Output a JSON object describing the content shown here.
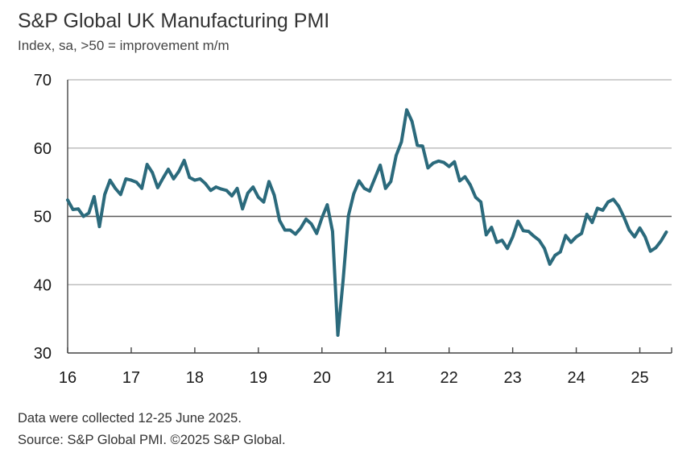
{
  "title": "S&P Global UK Manufacturing PMI",
  "subtitle": "Index, sa, >50 = improvement m/m",
  "notes": {
    "collected": "Data were collected 12-25 June 2025.",
    "source": "Source: S&P Global PMI. ©2025 S&P Global."
  },
  "colors": {
    "line": "#2b6a7c",
    "grid": "#b3b3b3",
    "threshold": "#595959",
    "axis": "#444444"
  },
  "chart_data": {
    "type": "line",
    "title": "S&P Global UK Manufacturing PMI",
    "subtitle": "Index, sa, >50 = improvement m/m",
    "xlabel": "",
    "ylabel": "",
    "ylim": [
      30,
      70
    ],
    "xlim": [
      16.0,
      25.5
    ],
    "yticks": [
      30,
      40,
      50,
      60,
      70
    ],
    "xticks": [
      16,
      17,
      18,
      19,
      20,
      21,
      22,
      23,
      24,
      25
    ],
    "xtick_labels": [
      "16",
      "17",
      "18",
      "19",
      "20",
      "21",
      "22",
      "23",
      "24",
      "25"
    ],
    "grid": "horizontal",
    "threshold": 50,
    "series": [
      {
        "name": "UK Manufacturing PMI",
        "start": 16.0,
        "step_months": 1,
        "values": [
          52.4,
          51.0,
          51.1,
          50.0,
          50.5,
          52.9,
          48.5,
          53.2,
          55.3,
          54.1,
          53.2,
          55.5,
          55.3,
          55.0,
          54.1,
          57.6,
          56.4,
          54.2,
          55.6,
          56.9,
          55.5,
          56.6,
          58.2,
          55.7,
          55.3,
          55.5,
          54.8,
          53.8,
          54.3,
          54.0,
          53.8,
          53.0,
          54.1,
          51.1,
          53.4,
          54.3,
          52.8,
          52.1,
          55.1,
          53.1,
          49.4,
          48.0,
          48.0,
          47.4,
          48.3,
          49.6,
          48.9,
          47.5,
          49.8,
          51.7,
          47.8,
          32.6,
          40.7,
          50.1,
          53.3,
          55.2,
          54.1,
          53.7,
          55.6,
          57.5,
          54.1,
          55.1,
          58.9,
          60.9,
          65.6,
          63.9,
          60.4,
          60.3,
          57.1,
          57.8,
          58.1,
          57.9,
          57.3,
          58.0,
          55.2,
          55.8,
          54.6,
          52.8,
          52.1,
          47.3,
          48.4,
          46.2,
          46.5,
          45.3,
          47.0,
          49.3,
          47.9,
          47.8,
          47.1,
          46.5,
          45.3,
          43.0,
          44.3,
          44.8,
          47.2,
          46.2,
          47.0,
          47.5,
          50.3,
          49.1,
          51.2,
          50.9,
          52.1,
          52.5,
          51.5,
          49.9,
          48.0,
          47.0,
          48.3,
          47.0,
          44.9,
          45.4,
          46.4,
          47.7
        ]
      }
    ]
  }
}
